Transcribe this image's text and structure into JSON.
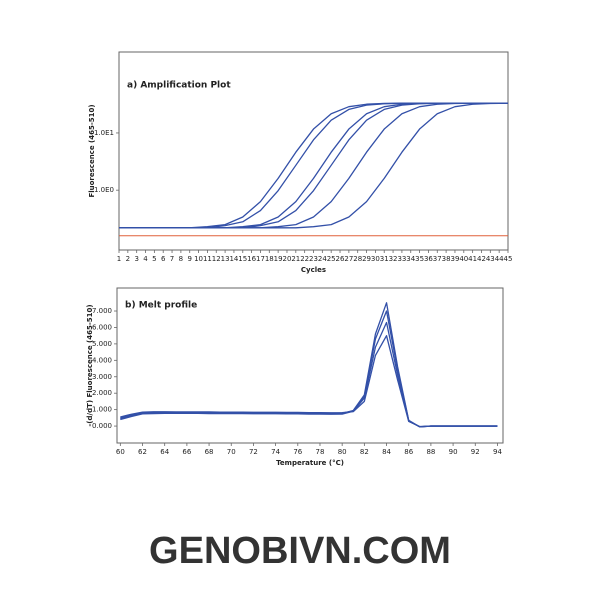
{
  "chart_data": [
    {
      "type": "line",
      "title": "a) Amplification Plot",
      "x_label": "Cycles",
      "y_label": "Fluorescence (465-510)",
      "log_y": true,
      "grid": false,
      "color": "#3350a8",
      "xlim": [
        1,
        45
      ],
      "ylim": [
        0.09,
        260
      ],
      "xticks": [
        1,
        2,
        3,
        4,
        5,
        6,
        7,
        8,
        9,
        10,
        11,
        12,
        13,
        14,
        15,
        16,
        17,
        18,
        19,
        20,
        21,
        22,
        23,
        24,
        25,
        26,
        27,
        28,
        29,
        30,
        31,
        32,
        33,
        34,
        35,
        36,
        37,
        38,
        39,
        40,
        41,
        42,
        43,
        44,
        45
      ],
      "yticks": [
        {
          "value": 1,
          "label": "1.0E0"
        },
        {
          "value": 10,
          "label": "1.0E1"
        }
      ],
      "threshold": {
        "value": 0.16,
        "color": "#e0603a"
      },
      "x": [
        1,
        3,
        5,
        7,
        9,
        11,
        13,
        15,
        17,
        19,
        21,
        23,
        25,
        27,
        29,
        31,
        33,
        35,
        37,
        39,
        41,
        43,
        45
      ],
      "series": [
        {
          "values": [
            0.22,
            0.22,
            0.22,
            0.22,
            0.22,
            0.23,
            0.25,
            0.34,
            0.63,
            1.61,
            4.61,
            11.7,
            21.7,
            28.8,
            31.8,
            32.8,
            33.1,
            33.2,
            33.2,
            33.2,
            33.2,
            33.2,
            33.2
          ]
        },
        {
          "values": [
            0.22,
            0.22,
            0.22,
            0.22,
            0.22,
            0.22,
            0.24,
            0.28,
            0.44,
            0.98,
            2.72,
            7.57,
            16.7,
            25.8,
            30.7,
            32.4,
            33.0,
            33.2,
            33.2,
            33.2,
            33.2,
            33.2,
            33.2
          ]
        },
        {
          "values": [
            0.22,
            0.22,
            0.22,
            0.22,
            0.22,
            0.22,
            0.22,
            0.23,
            0.25,
            0.34,
            0.63,
            1.61,
            4.61,
            11.7,
            21.7,
            28.8,
            31.8,
            32.8,
            33.1,
            33.2,
            33.2,
            33.2,
            33.2
          ]
        },
        {
          "values": [
            0.22,
            0.22,
            0.22,
            0.22,
            0.22,
            0.22,
            0.22,
            0.22,
            0.24,
            0.28,
            0.44,
            0.98,
            2.72,
            7.57,
            16.7,
            25.8,
            30.7,
            32.4,
            33.0,
            33.2,
            33.2,
            33.2,
            33.2
          ]
        },
        {
          "values": [
            0.22,
            0.22,
            0.22,
            0.22,
            0.22,
            0.22,
            0.22,
            0.22,
            0.22,
            0.23,
            0.25,
            0.34,
            0.63,
            1.61,
            4.61,
            11.7,
            21.7,
            28.8,
            31.8,
            32.8,
            33.1,
            33.2,
            33.2
          ]
        },
        {
          "values": [
            0.22,
            0.22,
            0.22,
            0.22,
            0.22,
            0.22,
            0.22,
            0.22,
            0.22,
            0.22,
            0.22,
            0.23,
            0.25,
            0.34,
            0.63,
            1.61,
            4.61,
            11.7,
            21.7,
            28.8,
            31.8,
            32.8,
            33.1
          ]
        }
      ]
    },
    {
      "type": "line",
      "title": "b) Melt profile",
      "x_label": "Temperature (°C)",
      "y_label": "-(d/dT) Fluorescence (465-510)",
      "log_y": false,
      "grid": false,
      "color": "#3350a8",
      "xlim": [
        59.7,
        94.5
      ],
      "ylim": [
        -1.03,
        8.4
      ],
      "xticks": [
        60,
        62,
        64,
        66,
        68,
        70,
        72,
        74,
        76,
        78,
        80,
        82,
        84,
        86,
        88,
        90,
        92,
        94
      ],
      "yticks": [
        {
          "value": 0,
          "label": "0.000"
        },
        {
          "value": 1,
          "label": "1.000"
        },
        {
          "value": 2,
          "label": "2.000"
        },
        {
          "value": 3,
          "label": "3.000"
        },
        {
          "value": 4,
          "label": "4.000"
        },
        {
          "value": 5,
          "label": "5.000"
        },
        {
          "value": 6,
          "label": "6.000"
        },
        {
          "value": 7,
          "label": "7.000"
        }
      ],
      "x": [
        60,
        61,
        62,
        63,
        64,
        65,
        66,
        67,
        68,
        69,
        70,
        71,
        72,
        73,
        74,
        75,
        76,
        77,
        78,
        79,
        80,
        81,
        82,
        83,
        84,
        85,
        86,
        87,
        88,
        89,
        90,
        91,
        92,
        93,
        94
      ],
      "series": [
        {
          "values": [
            0.45,
            0.62,
            0.78,
            0.8,
            0.8,
            0.8,
            0.8,
            0.8,
            0.79,
            0.79,
            0.79,
            0.79,
            0.79,
            0.78,
            0.78,
            0.78,
            0.77,
            0.77,
            0.76,
            0.75,
            0.76,
            0.95,
            1.9,
            5.6,
            7.5,
            3.6,
            0.35,
            -0.05,
            0,
            0,
            0,
            0,
            0,
            0,
            0
          ]
        },
        {
          "values": [
            0.5,
            0.68,
            0.82,
            0.84,
            0.84,
            0.84,
            0.84,
            0.84,
            0.83,
            0.83,
            0.83,
            0.82,
            0.82,
            0.82,
            0.81,
            0.81,
            0.8,
            0.8,
            0.79,
            0.78,
            0.79,
            0.93,
            1.8,
            5.3,
            7.0,
            3.4,
            0.33,
            -0.05,
            0,
            0,
            0,
            0,
            0,
            0,
            0
          ]
        },
        {
          "values": [
            0.4,
            0.58,
            0.74,
            0.76,
            0.77,
            0.77,
            0.77,
            0.77,
            0.76,
            0.76,
            0.76,
            0.76,
            0.75,
            0.75,
            0.75,
            0.74,
            0.74,
            0.73,
            0.73,
            0.72,
            0.73,
            0.9,
            1.7,
            4.8,
            6.3,
            3.1,
            0.3,
            -0.04,
            0,
            0,
            0,
            0,
            0,
            0,
            0
          ]
        },
        {
          "values": [
            0.55,
            0.72,
            0.85,
            0.87,
            0.87,
            0.86,
            0.86,
            0.86,
            0.86,
            0.85,
            0.85,
            0.85,
            0.84,
            0.84,
            0.84,
            0.83,
            0.83,
            0.82,
            0.82,
            0.81,
            0.82,
            0.88,
            1.5,
            4.3,
            5.5,
            2.8,
            0.28,
            -0.03,
            0,
            0,
            0,
            0,
            0,
            0,
            0
          ]
        }
      ]
    }
  ],
  "footer": "GENOBIVN.COM"
}
